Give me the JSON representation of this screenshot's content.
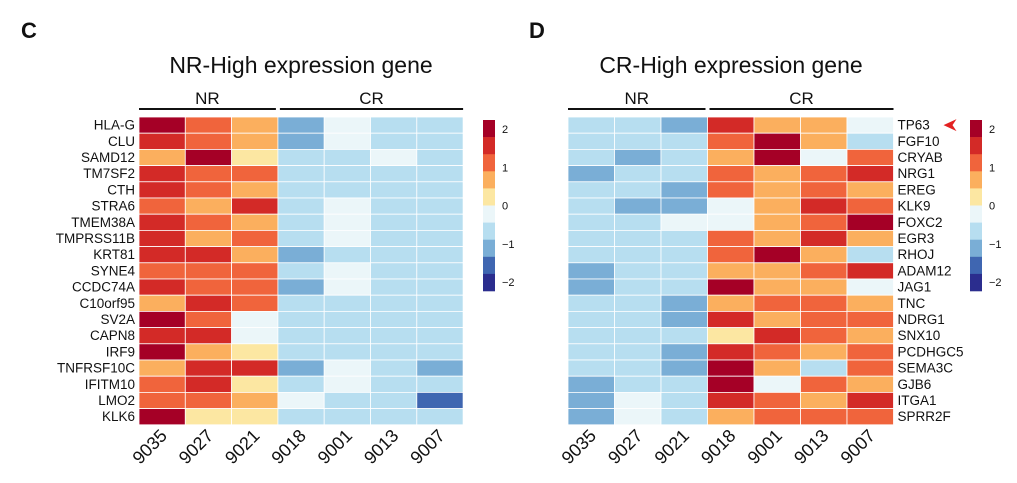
{
  "panels": [
    {
      "letter": "C",
      "title": "NR-High expression gene"
    },
    {
      "letter": "D",
      "title": "CR-High expression gene"
    }
  ],
  "colorscale": [
    "#2b2d8e",
    "#3f66b1",
    "#7aaed6",
    "#b7def0",
    "#ebf6f9",
    "#fce7a2",
    "#fbaf5e",
    "#f0643c",
    "#d32a27",
    "#a50026"
  ],
  "legend_ticks": [
    "2",
    "1",
    "0",
    "−1",
    "−2"
  ],
  "highlight_color": "#e32121",
  "chart_data": [
    {
      "type": "heatmap",
      "title": "NR-High expression gene",
      "groups": [
        {
          "name": "NR",
          "samples": [
            "9035",
            "9027",
            "9021"
          ]
        },
        {
          "name": "CR",
          "samples": [
            "9018",
            "9001",
            "9013",
            "9007"
          ]
        }
      ],
      "columns": [
        "9035",
        "9027",
        "9021",
        "9018",
        "9001",
        "9013",
        "9007"
      ],
      "rows": [
        "HLA-G",
        "CLU",
        "SAMD12",
        "TM7SF2",
        "CTH",
        "STRA6",
        "TMEM38A",
        "TMPRSS11B",
        "KRT81",
        "SYNE4",
        "CCDC74A",
        "C10orf95",
        "SV2A",
        "CAPN8",
        "IRF9",
        "TNFRSF10C",
        "IFITM10",
        "LMO2",
        "KLK6"
      ],
      "values": [
        [
          2.2,
          1.4,
          0.9,
          -1.1,
          -0.2,
          -1.0,
          -0.7
        ],
        [
          1.5,
          1.0,
          0.7,
          -1.1,
          -0.5,
          -0.6,
          -0.8
        ],
        [
          0.6,
          2.3,
          0.4,
          -0.6,
          -0.9,
          -0.2,
          -0.8
        ],
        [
          1.7,
          1.1,
          1.2,
          -0.8,
          -0.7,
          -0.7,
          -1.0
        ],
        [
          1.5,
          1.0,
          0.9,
          -0.8,
          -0.7,
          -0.7,
          -1.0
        ],
        [
          1.4,
          0.8,
          1.7,
          -0.8,
          -0.4,
          -1.0,
          -1.0
        ],
        [
          1.5,
          1.2,
          0.8,
          -1.0,
          -0.3,
          -0.9,
          -0.9
        ],
        [
          1.5,
          0.9,
          1.1,
          -1.0,
          -0.5,
          -0.8,
          -0.9
        ],
        [
          1.6,
          1.5,
          0.6,
          -1.1,
          -0.6,
          -0.6,
          -0.9
        ],
        [
          1.4,
          1.1,
          1.0,
          -1.0,
          -0.4,
          -0.8,
          -0.9
        ],
        [
          1.6,
          1.2,
          1.0,
          -1.1,
          -0.4,
          -0.8,
          -1.0
        ],
        [
          0.8,
          1.5,
          1.3,
          -1.0,
          -0.6,
          -1.0,
          -0.6
        ],
        [
          2.2,
          1.4,
          -0.1,
          -0.9,
          -0.7,
          -0.6,
          -0.7
        ],
        [
          1.7,
          1.5,
          -0.1,
          -0.7,
          -0.7,
          -0.6,
          -0.6
        ],
        [
          2.2,
          0.9,
          0.4,
          -0.8,
          -0.6,
          -0.7,
          -0.8
        ],
        [
          0.5,
          1.5,
          1.6,
          -1.2,
          -0.4,
          -0.7,
          -1.1
        ],
        [
          1.4,
          1.5,
          0.4,
          -1.0,
          -0.4,
          -0.7,
          -1.0
        ],
        [
          1.0,
          1.0,
          0.9,
          -0.3,
          -0.7,
          -0.6,
          -1.8
        ],
        [
          2.2,
          0.4,
          0.4,
          -0.6,
          -0.6,
          -1.0,
          -0.6
        ]
      ],
      "colorbar": {
        "min": -2,
        "max": 2,
        "ticks": [
          2,
          1,
          0,
          -1,
          -2
        ]
      }
    },
    {
      "type": "heatmap",
      "title": "CR-High expression gene",
      "groups": [
        {
          "name": "NR",
          "samples": [
            "9035",
            "9027",
            "9021"
          ]
        },
        {
          "name": "CR",
          "samples": [
            "9018",
            "9001",
            "9013",
            "9007"
          ]
        }
      ],
      "columns": [
        "9035",
        "9027",
        "9021",
        "9018",
        "9001",
        "9013",
        "9007"
      ],
      "rows": [
        "TP63",
        "FGF10",
        "CRYAB",
        "NRG1",
        "EREG",
        "KLK9",
        "FOXC2",
        "EGR3",
        "RHOJ",
        "ADAM12",
        "JAG1",
        "TNC",
        "NDRG1",
        "SNX10",
        "PCDHGC5",
        "SEMA3C",
        "GJB6",
        "ITGA1",
        "SPRR2F"
      ],
      "highlighted_row": "TP63",
      "values": [
        [
          -0.6,
          -0.6,
          -1.5,
          1.7,
          0.8,
          0.8,
          -0.3
        ],
        [
          -0.7,
          -0.7,
          -0.7,
          1.0,
          2.3,
          0.5,
          -0.6
        ],
        [
          -0.7,
          -1.5,
          -0.7,
          0.9,
          2.2,
          -0.2,
          1.0
        ],
        [
          -1.4,
          -0.8,
          -0.7,
          1.0,
          0.6,
          1.0,
          1.6
        ],
        [
          -0.8,
          -0.9,
          -1.4,
          1.2,
          0.9,
          1.1,
          0.6
        ],
        [
          -0.8,
          -1.1,
          -1.4,
          -0.2,
          0.9,
          1.5,
          1.3
        ],
        [
          -0.9,
          -1.0,
          -0.2,
          -0.2,
          0.8,
          1.1,
          2.3
        ],
        [
          -0.9,
          -1.0,
          -0.8,
          1.3,
          0.9,
          1.6,
          0.6
        ],
        [
          -0.9,
          -0.9,
          -1.0,
          1.2,
          2.3,
          0.6,
          -0.6
        ],
        [
          -1.5,
          -1.0,
          -1.0,
          0.5,
          0.9,
          1.1,
          1.7
        ],
        [
          -1.1,
          -1.0,
          -1.0,
          2.2,
          0.5,
          0.6,
          -0.3
        ],
        [
          -0.9,
          -1.0,
          -1.5,
          0.9,
          1.3,
          1.3,
          0.8
        ],
        [
          -0.9,
          -0.9,
          -1.1,
          1.7,
          0.7,
          1.2,
          1.2
        ],
        [
          -0.9,
          -0.9,
          -0.9,
          0.4,
          1.6,
          1.0,
          0.9
        ],
        [
          -0.9,
          -0.7,
          -1.5,
          1.7,
          1.0,
          0.6,
          1.1
        ],
        [
          -0.8,
          -0.6,
          -1.1,
          2.3,
          0.7,
          -0.6,
          1.2
        ],
        [
          -1.2,
          -0.6,
          -1.0,
          2.2,
          -0.1,
          1.2,
          0.8
        ],
        [
          -1.4,
          -0.3,
          -0.9,
          1.7,
          1.0,
          0.6,
          1.5
        ],
        [
          -1.4,
          -0.2,
          -0.9,
          0.5,
          1.0,
          1.0,
          1.2
        ]
      ],
      "colorbar": {
        "min": -2,
        "max": 2,
        "ticks": [
          2,
          1,
          0,
          -1,
          -2
        ]
      }
    }
  ]
}
